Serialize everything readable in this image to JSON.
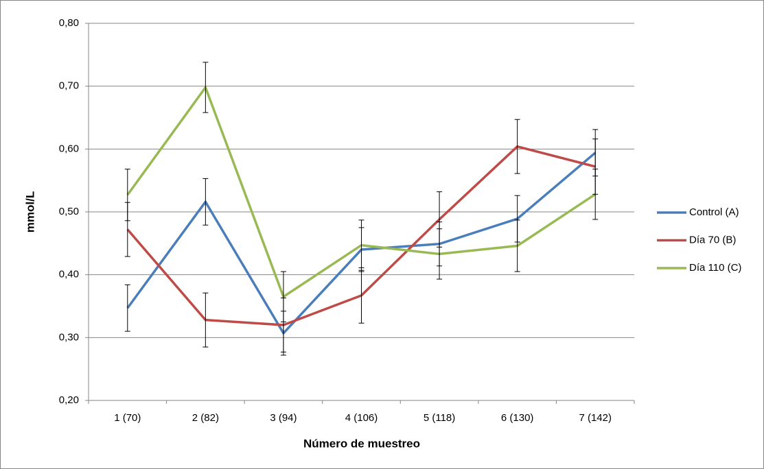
{
  "chart_data": {
    "type": "line",
    "x_label": "Número de muestreo",
    "y_label": "mmol/L",
    "categories": [
      "1 (70)",
      "2 (82)",
      "3 (94)",
      "4 (106)",
      "5 (118)",
      "6 (130)",
      "7 (142)"
    ],
    "series": [
      {
        "name": "Control (A)",
        "color": "#4a7ebb",
        "values": [
          0.347,
          0.516,
          0.307,
          0.44,
          0.449,
          0.489,
          0.594
        ],
        "errors": [
          0.037,
          0.037,
          0.035,
          0.035,
          0.035,
          0.037,
          0.037
        ]
      },
      {
        "name": "Día 70 (B)",
        "color": "#be4b48",
        "values": [
          0.472,
          0.328,
          0.32,
          0.367,
          0.488,
          0.604,
          0.572
        ],
        "errors": [
          0.043,
          0.043,
          0.043,
          0.044,
          0.044,
          0.043,
          0.044
        ]
      },
      {
        "name": "Día 110 (C)",
        "color": "#98b954",
        "values": [
          0.527,
          0.698,
          0.365,
          0.447,
          0.433,
          0.446,
          0.528
        ],
        "errors": [
          0.041,
          0.04,
          0.04,
          0.04,
          0.04,
          0.041,
          0.04
        ]
      }
    ],
    "ylim": [
      0.2,
      0.8
    ],
    "yticks": [
      {
        "value": 0.2,
        "label": "0,20"
      },
      {
        "value": 0.3,
        "label": "0,30"
      },
      {
        "value": 0.4,
        "label": "0,40"
      },
      {
        "value": 0.5,
        "label": "0,50"
      },
      {
        "value": 0.6,
        "label": "0,60"
      },
      {
        "value": 0.7,
        "label": "0,70"
      },
      {
        "value": 0.8,
        "label": "0,80"
      }
    ],
    "grid": true,
    "legend": "right"
  }
}
